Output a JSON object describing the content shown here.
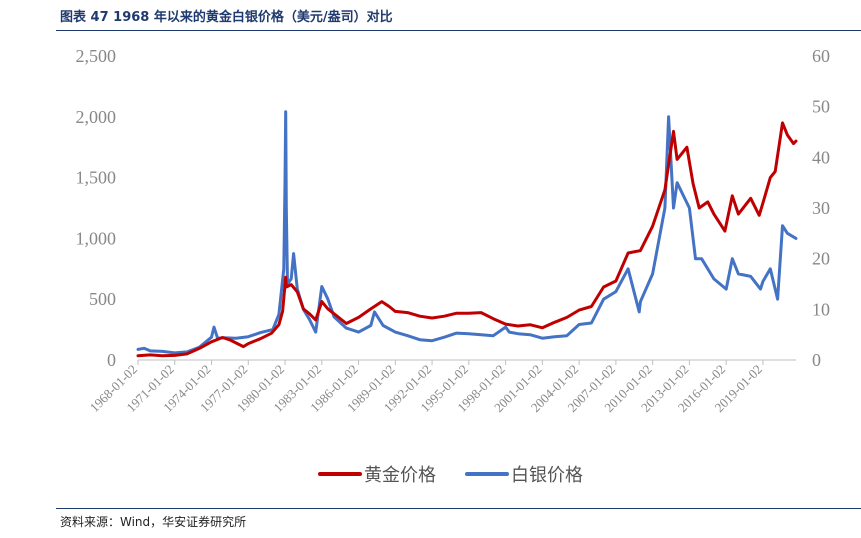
{
  "header": {
    "title": "图表 47 1968 年以来的黄金白银价格（美元/盎司）对比"
  },
  "footer": {
    "source": "资料来源：Wind，华安证券研究所"
  },
  "colors": {
    "gold": "#c00000",
    "silver": "#4472c4",
    "axis": "#bfbfbf",
    "tick": "#888888"
  },
  "chart_data": {
    "type": "line",
    "title": "",
    "legend": "bottom",
    "grid": false,
    "x_ticks": [
      "1968-01-02",
      "1971-01-02",
      "1974-01-02",
      "1977-01-02",
      "1980-01-02",
      "1983-01-02",
      "1986-01-02",
      "1989-01-02",
      "1992-01-02",
      "1995-01-02",
      "1998-01-02",
      "2001-01-02",
      "2004-01-02",
      "2007-01-02",
      "2010-01-02",
      "2013-01-02",
      "2016-01-02",
      "2019-01-02"
    ],
    "x_range": [
      1968.0,
      2021.7
    ],
    "y_left": {
      "range": [
        0,
        2500
      ],
      "ticks": [
        0,
        500,
        1000,
        1500,
        2000,
        2500
      ],
      "tick_labels": [
        "0",
        "500",
        "1,000",
        "1,500",
        "2,000",
        "2,500"
      ]
    },
    "y_right": {
      "range": [
        0,
        60
      ],
      "ticks": [
        0,
        10,
        20,
        30,
        40,
        50,
        60
      ],
      "tick_labels": [
        "0",
        "10",
        "20",
        "30",
        "40",
        "50",
        "60"
      ]
    },
    "series": [
      {
        "name": "黄金价格",
        "axis": "left",
        "color": "#c00000",
        "points": [
          [
            1968.0,
            35
          ],
          [
            1969.0,
            42
          ],
          [
            1970.0,
            35
          ],
          [
            1971.0,
            38
          ],
          [
            1972.0,
            50
          ],
          [
            1973.0,
            95
          ],
          [
            1974.0,
            150
          ],
          [
            1974.9,
            185
          ],
          [
            1975.5,
            165
          ],
          [
            1976.6,
            110
          ],
          [
            1977.0,
            135
          ],
          [
            1978.0,
            175
          ],
          [
            1978.9,
            220
          ],
          [
            1979.5,
            290
          ],
          [
            1979.8,
            400
          ],
          [
            1980.05,
            680
          ],
          [
            1980.1,
            600
          ],
          [
            1980.5,
            620
          ],
          [
            1981.0,
            560
          ],
          [
            1981.5,
            420
          ],
          [
            1982.0,
            380
          ],
          [
            1982.5,
            330
          ],
          [
            1983.0,
            480
          ],
          [
            1983.5,
            420
          ],
          [
            1984.0,
            380
          ],
          [
            1985.0,
            300
          ],
          [
            1986.0,
            350
          ],
          [
            1987.0,
            420
          ],
          [
            1987.9,
            480
          ],
          [
            1988.5,
            440
          ],
          [
            1989.0,
            400
          ],
          [
            1990.0,
            390
          ],
          [
            1991.0,
            360
          ],
          [
            1992.0,
            345
          ],
          [
            1993.0,
            360
          ],
          [
            1994.0,
            385
          ],
          [
            1995.0,
            385
          ],
          [
            1996.0,
            390
          ],
          [
            1997.0,
            340
          ],
          [
            1998.0,
            295
          ],
          [
            1999.0,
            280
          ],
          [
            2000.0,
            290
          ],
          [
            2001.0,
            265
          ],
          [
            2002.0,
            310
          ],
          [
            2003.0,
            350
          ],
          [
            2004.0,
            410
          ],
          [
            2005.0,
            440
          ],
          [
            2006.0,
            600
          ],
          [
            2007.0,
            650
          ],
          [
            2008.0,
            880
          ],
          [
            2009.0,
            900
          ],
          [
            2010.0,
            1100
          ],
          [
            2011.0,
            1400
          ],
          [
            2011.7,
            1880
          ],
          [
            2012.0,
            1650
          ],
          [
            2012.8,
            1750
          ],
          [
            2013.3,
            1450
          ],
          [
            2013.8,
            1250
          ],
          [
            2014.5,
            1300
          ],
          [
            2015.0,
            1200
          ],
          [
            2015.9,
            1060
          ],
          [
            2016.5,
            1350
          ],
          [
            2017.0,
            1200
          ],
          [
            2018.0,
            1330
          ],
          [
            2018.7,
            1190
          ],
          [
            2019.0,
            1290
          ],
          [
            2019.6,
            1500
          ],
          [
            2020.0,
            1550
          ],
          [
            2020.6,
            1950
          ],
          [
            2021.0,
            1850
          ],
          [
            2021.5,
            1780
          ],
          [
            2021.7,
            1800
          ]
        ]
      },
      {
        "name": "白银价格",
        "axis": "right",
        "color": "#4472c4",
        "points": [
          [
            1968.0,
            2.1
          ],
          [
            1968.5,
            2.3
          ],
          [
            1969.0,
            1.8
          ],
          [
            1970.0,
            1.7
          ],
          [
            1971.0,
            1.4
          ],
          [
            1972.0,
            1.6
          ],
          [
            1973.0,
            2.5
          ],
          [
            1974.0,
            4.5
          ],
          [
            1974.2,
            6.5
          ],
          [
            1974.5,
            4.3
          ],
          [
            1975.0,
            4.4
          ],
          [
            1976.0,
            4.3
          ],
          [
            1977.0,
            4.6
          ],
          [
            1978.0,
            5.4
          ],
          [
            1979.0,
            6.0
          ],
          [
            1979.5,
            9.0
          ],
          [
            1979.9,
            18.0
          ],
          [
            1980.0,
            35.0
          ],
          [
            1980.05,
            49.0
          ],
          [
            1980.1,
            30.0
          ],
          [
            1980.2,
            15.0
          ],
          [
            1980.5,
            16.0
          ],
          [
            1980.7,
            21.0
          ],
          [
            1981.0,
            14.0
          ],
          [
            1981.5,
            10.0
          ],
          [
            1982.0,
            8.0
          ],
          [
            1982.5,
            5.5
          ],
          [
            1983.0,
            14.5
          ],
          [
            1983.5,
            12.0
          ],
          [
            1984.0,
            8.5
          ],
          [
            1985.0,
            6.3
          ],
          [
            1986.0,
            5.5
          ],
          [
            1987.0,
            6.8
          ],
          [
            1987.3,
            9.5
          ],
          [
            1988.0,
            6.8
          ],
          [
            1989.0,
            5.5
          ],
          [
            1990.0,
            4.8
          ],
          [
            1991.0,
            4.0
          ],
          [
            1992.0,
            3.8
          ],
          [
            1993.0,
            4.5
          ],
          [
            1994.0,
            5.3
          ],
          [
            1995.0,
            5.2
          ],
          [
            1996.0,
            5.0
          ],
          [
            1997.0,
            4.8
          ],
          [
            1998.0,
            6.5
          ],
          [
            1998.3,
            5.5
          ],
          [
            1999.0,
            5.2
          ],
          [
            2000.0,
            5.0
          ],
          [
            2001.0,
            4.3
          ],
          [
            2002.0,
            4.6
          ],
          [
            2003.0,
            4.8
          ],
          [
            2004.0,
            7.0
          ],
          [
            2005.0,
            7.3
          ],
          [
            2006.0,
            12.0
          ],
          [
            2007.0,
            13.5
          ],
          [
            2008.0,
            18.0
          ],
          [
            2008.9,
            9.5
          ],
          [
            2009.0,
            11.5
          ],
          [
            2010.0,
            17.0
          ],
          [
            2011.0,
            30.0
          ],
          [
            2011.3,
            48.0
          ],
          [
            2011.7,
            30.0
          ],
          [
            2012.0,
            35.0
          ],
          [
            2013.0,
            30.0
          ],
          [
            2013.5,
            20.0
          ],
          [
            2014.0,
            20.0
          ],
          [
            2015.0,
            16.0
          ],
          [
            2016.0,
            14.0
          ],
          [
            2016.5,
            20.0
          ],
          [
            2017.0,
            17.0
          ],
          [
            2018.0,
            16.5
          ],
          [
            2018.8,
            14.0
          ],
          [
            2019.0,
            15.5
          ],
          [
            2019.6,
            18.0
          ],
          [
            2020.2,
            12.0
          ],
          [
            2020.6,
            26.5
          ],
          [
            2021.0,
            25.0
          ],
          [
            2021.7,
            24.0
          ]
        ]
      }
    ]
  }
}
